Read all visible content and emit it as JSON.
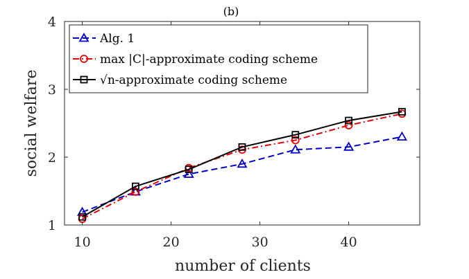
{
  "chart_data": {
    "type": "line",
    "title": "(b)",
    "xlabel": "number of clients",
    "ylabel": "social welfare",
    "xlim": [
      8,
      48
    ],
    "ylim": [
      1,
      4
    ],
    "x_ticks": [
      10,
      20,
      30,
      40
    ],
    "y_ticks": [
      1,
      2,
      3,
      4
    ],
    "x": [
      10,
      16,
      22,
      28,
      34,
      40,
      46
    ],
    "legend_position": "top-left",
    "grid": false,
    "series": [
      {
        "name": "Alg. 1",
        "values": [
          1.19,
          1.49,
          1.75,
          1.9,
          2.11,
          2.15,
          2.3
        ],
        "color": "#0000cc",
        "marker": "triangle",
        "linestyle": "dashed"
      },
      {
        "name": "max |C|-approximate coding scheme",
        "values": [
          1.09,
          1.49,
          1.84,
          2.11,
          2.25,
          2.47,
          2.64
        ],
        "color": "#ee0000",
        "marker": "circle",
        "linestyle": "dashdot"
      },
      {
        "name": "√n-approximate coding scheme",
        "values": [
          1.12,
          1.57,
          1.82,
          2.15,
          2.33,
          2.54,
          2.67
        ],
        "color": "#000000",
        "marker": "square",
        "linestyle": "solid"
      }
    ]
  }
}
